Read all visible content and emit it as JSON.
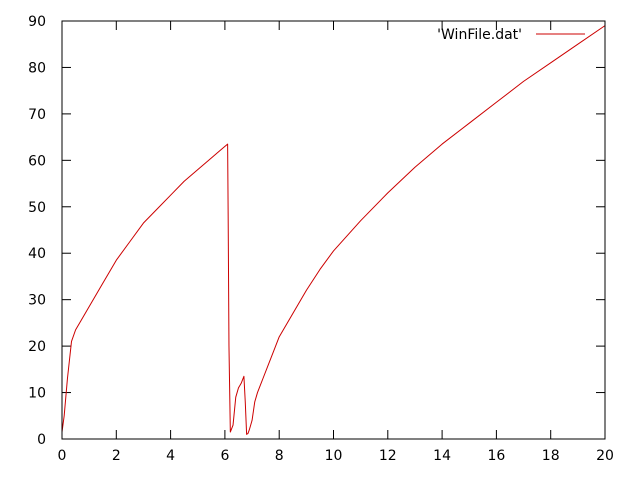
{
  "chart_data": {
    "type": "line",
    "title": "",
    "xlabel": "",
    "ylabel": "",
    "xlim": [
      0,
      20
    ],
    "ylim": [
      0,
      90
    ],
    "xticks": [
      0,
      2,
      4,
      6,
      8,
      10,
      12,
      14,
      16,
      18,
      20
    ],
    "yticks": [
      0,
      10,
      20,
      30,
      40,
      50,
      60,
      70,
      80,
      90
    ],
    "grid": false,
    "legend_position": "top-right",
    "series": [
      {
        "name": "'WinFile.dat'",
        "color": "#cc0000",
        "x": [
          0.0,
          0.08,
          0.2,
          0.35,
          0.5,
          0.7,
          1.0,
          1.5,
          2.0,
          2.5,
          3.0,
          3.5,
          4.0,
          4.5,
          5.0,
          5.5,
          5.8,
          6.0,
          6.1,
          6.12,
          6.15,
          6.2,
          6.3,
          6.4,
          6.5,
          6.6,
          6.7,
          6.75,
          6.8,
          6.85,
          6.9,
          7.0,
          7.1,
          7.2,
          7.4,
          7.6,
          7.8,
          8.0,
          8.5,
          9.0,
          9.5,
          10.0,
          11.0,
          12.0,
          13.0,
          14.0,
          15.0,
          16.0,
          17.0,
          18.0,
          19.0,
          20.0
        ],
        "y": [
          1.5,
          5.0,
          13.0,
          21.0,
          23.5,
          25.5,
          28.5,
          33.5,
          38.5,
          42.5,
          46.5,
          49.5,
          52.5,
          55.5,
          58.0,
          60.5,
          62.0,
          63.0,
          63.5,
          48.0,
          20.0,
          1.5,
          3.0,
          9.0,
          11.0,
          12.0,
          13.5,
          8.0,
          1.0,
          1.2,
          2.0,
          4.0,
          8.0,
          10.0,
          13.0,
          16.0,
          19.0,
          22.0,
          27.0,
          32.0,
          36.5,
          40.5,
          47.0,
          53.0,
          58.5,
          63.5,
          68.0,
          72.5,
          77.0,
          81.0,
          85.0,
          89.0
        ]
      }
    ]
  }
}
